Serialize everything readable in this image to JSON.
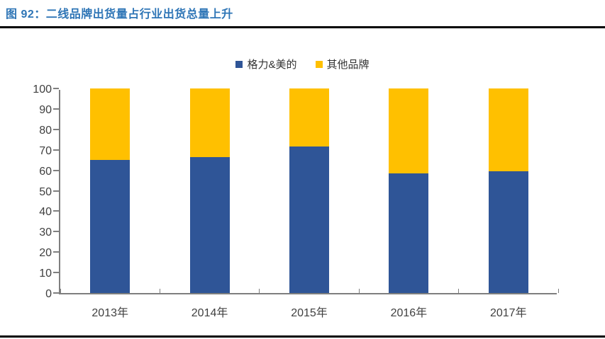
{
  "header": {
    "title": "图 92：二线品牌出货量占行业出货总量上升"
  },
  "chart_data": {
    "type": "bar",
    "stacked": true,
    "title": "图 92：二线品牌出货量占行业出货总量上升",
    "categories": [
      "2013年",
      "2014年",
      "2015年",
      "2016年",
      "2017年"
    ],
    "series": [
      {
        "name": "格力&美的",
        "color": "#2F5597",
        "values": [
          65,
          66.5,
          71.5,
          58.5,
          59.5
        ]
      },
      {
        "name": "其他品牌",
        "color": "#FFC000",
        "values": [
          35,
          33.5,
          28.5,
          41.5,
          40.5
        ]
      }
    ],
    "ylim": [
      0,
      100
    ],
    "ytick_step": 10,
    "grid": false,
    "legend_position": "top-center",
    "xlabel": "",
    "ylabel": ""
  },
  "colors": {
    "title": "#2E75B6",
    "rule": "#000000",
    "axis": "#7F7F7F",
    "tick_label": "#404040"
  }
}
